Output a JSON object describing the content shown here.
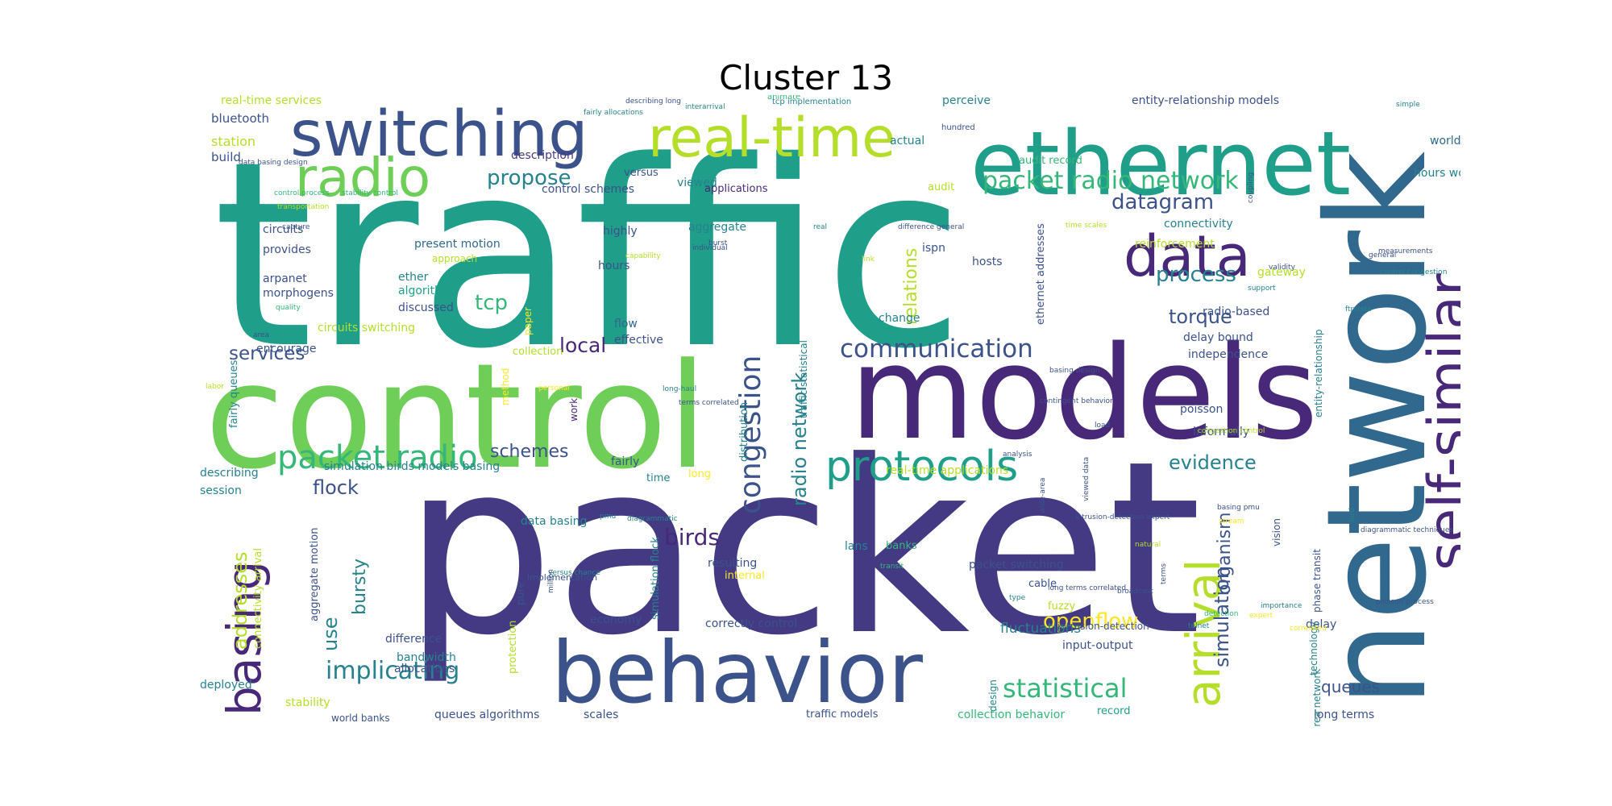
{
  "title": "Cluster 13",
  "palette": {
    "dark_purple": "#482878",
    "indigo": "#443983",
    "blue": "#3b528b",
    "steel": "#31688e",
    "teal": "#26828e",
    "teal_green": "#1f9e89",
    "green": "#35b779",
    "lime": "#6ece58",
    "yellow_green": "#b5de2b",
    "yellow": "#fde725"
  },
  "words": [
    {
      "text": "traffic",
      "color": "teal_green"
    },
    {
      "text": "packet",
      "color": "indigo"
    },
    {
      "text": "control",
      "color": "lime"
    },
    {
      "text": "models",
      "color": "dark_purple"
    },
    {
      "text": "network",
      "color": "steel"
    },
    {
      "text": "ethernet",
      "color": "teal_green"
    },
    {
      "text": "behavior",
      "color": "blue"
    },
    {
      "text": "switching",
      "color": "blue"
    },
    {
      "text": "real-time",
      "color": "yellow_green"
    },
    {
      "text": "data",
      "color": "dark_purple"
    },
    {
      "text": "radio",
      "color": "lime"
    },
    {
      "text": "self-similar",
      "color": "dark_purple"
    },
    {
      "text": "basing",
      "color": "dark_purple"
    },
    {
      "text": "arrival",
      "color": "yellow_green"
    },
    {
      "text": "protocols",
      "color": "teal_green"
    },
    {
      "text": "packet radio",
      "color": "green"
    },
    {
      "text": "congestion",
      "color": "blue"
    },
    {
      "text": "communication",
      "color": "blue"
    },
    {
      "text": "packet radio network",
      "color": "green"
    },
    {
      "text": "datagram",
      "color": "blue"
    },
    {
      "text": "process",
      "color": "teal"
    },
    {
      "text": "propose",
      "color": "teal"
    },
    {
      "text": "relations",
      "color": "yellow_green"
    },
    {
      "text": "implicating",
      "color": "teal"
    },
    {
      "text": "statistical",
      "color": "green"
    },
    {
      "text": "openflow",
      "color": "yellow"
    },
    {
      "text": "simulation",
      "color": "blue"
    },
    {
      "text": "addresses",
      "color": "yellow_green"
    },
    {
      "text": "radio network",
      "color": "teal"
    },
    {
      "text": "services",
      "color": "blue"
    },
    {
      "text": "local",
      "color": "dark_purple"
    },
    {
      "text": "tcp",
      "color": "green"
    },
    {
      "text": "torque",
      "color": "blue"
    },
    {
      "text": "evidence",
      "color": "teal"
    },
    {
      "text": "flock",
      "color": "blue"
    },
    {
      "text": "birds",
      "color": "dark_purple"
    },
    {
      "text": "schemes",
      "color": "blue"
    },
    {
      "text": "use",
      "color": "teal"
    },
    {
      "text": "bursty",
      "color": "teal"
    },
    {
      "text": "organism",
      "color": "blue"
    },
    {
      "text": "queues",
      "color": "blue"
    },
    {
      "text": "fluctuations",
      "color": "teal"
    },
    {
      "text": "bluetooth",
      "color": "blue"
    },
    {
      "text": "station",
      "color": "yellow_green"
    },
    {
      "text": "build",
      "color": "blue"
    },
    {
      "text": "real-time services",
      "color": "yellow_green"
    },
    {
      "text": "description",
      "color": "indigo"
    },
    {
      "text": "versus",
      "color": "blue"
    },
    {
      "text": "control schemes",
      "color": "blue"
    },
    {
      "text": "viewed",
      "color": "teal"
    },
    {
      "text": "applications",
      "color": "dark_purple"
    },
    {
      "text": "actual",
      "color": "teal"
    },
    {
      "text": "perceive",
      "color": "teal"
    },
    {
      "text": "audit",
      "color": "yellow_green"
    },
    {
      "text": "audit record",
      "color": "green"
    },
    {
      "text": "entity-relationship models",
      "color": "blue"
    },
    {
      "text": "world",
      "color": "steel"
    },
    {
      "text": "hours work",
      "color": "teal"
    },
    {
      "text": "circuits",
      "color": "blue"
    },
    {
      "text": "provides",
      "color": "blue"
    },
    {
      "text": "arpanet",
      "color": "blue"
    },
    {
      "text": "morphogens",
      "color": "blue"
    },
    {
      "text": "present motion",
      "color": "steel"
    },
    {
      "text": "approach",
      "color": "yellow_green"
    },
    {
      "text": "ether",
      "color": "teal"
    },
    {
      "text": "algorithms",
      "color": "teal_green"
    },
    {
      "text": "discussed",
      "color": "blue"
    },
    {
      "text": "circuits switching",
      "color": "yellow_green"
    },
    {
      "text": "encourage",
      "color": "blue"
    },
    {
      "text": "highly",
      "color": "blue"
    },
    {
      "text": "aggregate",
      "color": "teal"
    },
    {
      "text": "hours",
      "color": "blue"
    },
    {
      "text": "ispn",
      "color": "blue"
    },
    {
      "text": "hosts",
      "color": "blue"
    },
    {
      "text": "change",
      "color": "teal"
    },
    {
      "text": "flow",
      "color": "steel"
    },
    {
      "text": "effective",
      "color": "blue"
    },
    {
      "text": "collection",
      "color": "yellow_green"
    },
    {
      "text": "connectivity",
      "color": "teal"
    },
    {
      "text": "reinforcement",
      "color": "yellow_green"
    },
    {
      "text": "gateway",
      "color": "yellow_green"
    },
    {
      "text": "radio-based",
      "color": "blue"
    },
    {
      "text": "delay bound",
      "color": "blue"
    },
    {
      "text": "independence",
      "color": "blue"
    },
    {
      "text": "ethernet addresses",
      "color": "blue"
    },
    {
      "text": "poisson",
      "color": "blue"
    },
    {
      "text": "informally",
      "color": "blue"
    },
    {
      "text": "simulation birds models basing",
      "color": "teal"
    },
    {
      "text": "describing",
      "color": "teal"
    },
    {
      "text": "session",
      "color": "teal"
    },
    {
      "text": "real-time applications",
      "color": "yellow_green"
    },
    {
      "text": "fairly",
      "color": "blue"
    },
    {
      "text": "time",
      "color": "teal"
    },
    {
      "text": "long",
      "color": "yellow"
    },
    {
      "text": "data basing",
      "color": "teal"
    },
    {
      "text": "resulting",
      "color": "blue"
    },
    {
      "text": "internal",
      "color": "yellow"
    },
    {
      "text": "lans",
      "color": "teal"
    },
    {
      "text": "banks",
      "color": "green"
    },
    {
      "text": "packet switching",
      "color": "blue"
    },
    {
      "text": "cable",
      "color": "blue"
    },
    {
      "text": "fuzzy",
      "color": "yellow_green"
    },
    {
      "text": "economy",
      "color": "blue"
    },
    {
      "text": "correctly control",
      "color": "blue"
    },
    {
      "text": "difference",
      "color": "blue"
    },
    {
      "text": "bandwidth",
      "color": "teal"
    },
    {
      "text": "allocations",
      "color": "blue"
    },
    {
      "text": "intrusion-detection",
      "color": "blue"
    },
    {
      "text": "input-output",
      "color": "blue"
    },
    {
      "text": "deployed",
      "color": "teal"
    },
    {
      "text": "stability",
      "color": "yellow_green"
    },
    {
      "text": "world banks",
      "color": "blue"
    },
    {
      "text": "queues algorithms",
      "color": "blue"
    },
    {
      "text": "scales",
      "color": "blue"
    },
    {
      "text": "traffic models",
      "color": "blue"
    },
    {
      "text": "collection behavior",
      "color": "green"
    },
    {
      "text": "record",
      "color": "teal_green"
    },
    {
      "text": "long terms",
      "color": "blue"
    },
    {
      "text": "delay",
      "color": "blue"
    },
    {
      "text": "fairly queues",
      "color": "teal"
    },
    {
      "text": "connectivity arrival",
      "color": "yellow_green"
    },
    {
      "text": "aggregate motion",
      "color": "blue"
    },
    {
      "text": "pure",
      "color": "blue"
    },
    {
      "text": "protection",
      "color": "yellow_green"
    },
    {
      "text": "simulation flock",
      "color": "teal"
    },
    {
      "text": "distribution",
      "color": "teal"
    },
    {
      "text": "paper",
      "color": "yellow"
    },
    {
      "text": "method",
      "color": "yellow"
    },
    {
      "text": "work",
      "color": "dark_purple"
    },
    {
      "text": "entity-relationship",
      "color": "teal"
    },
    {
      "text": "vision",
      "color": "blue"
    },
    {
      "text": "technology",
      "color": "teal"
    },
    {
      "text": "phase transit",
      "color": "blue"
    },
    {
      "text": "design",
      "color": "teal"
    },
    {
      "text": "area network",
      "color": "teal"
    },
    {
      "text": "traffic statistical",
      "color": "teal"
    },
    {
      "text": "implementation",
      "color": "blue"
    },
    {
      "text": "describing long",
      "color": "blue"
    },
    {
      "text": "animate",
      "color": "green"
    },
    {
      "text": "tcp implementation",
      "color": "teal"
    },
    {
      "text": "fairly allocations",
      "color": "teal"
    },
    {
      "text": "interarrival",
      "color": "teal"
    },
    {
      "text": "hundred",
      "color": "blue"
    },
    {
      "text": "simple",
      "color": "teal"
    },
    {
      "text": "data basing design",
      "color": "blue"
    },
    {
      "text": "control process",
      "color": "green"
    },
    {
      "text": "stability control",
      "color": "green"
    },
    {
      "text": "transportation",
      "color": "yellow_green"
    },
    {
      "text": "capture",
      "color": "blue"
    },
    {
      "text": "capability",
      "color": "yellow_green"
    },
    {
      "text": "individual",
      "color": "blue"
    },
    {
      "text": "burst",
      "color": "blue"
    },
    {
      "text": "real",
      "color": "teal"
    },
    {
      "text": "link",
      "color": "yellow_green"
    },
    {
      "text": "difference general",
      "color": "blue"
    },
    {
      "text": "time scales",
      "color": "yellow_green"
    },
    {
      "text": "coupling",
      "color": "blue"
    },
    {
      "text": "validity",
      "color": "blue"
    },
    {
      "text": "measurements",
      "color": "blue"
    },
    {
      "text": "general",
      "color": "blue"
    },
    {
      "text": "control congestion",
      "color": "teal"
    },
    {
      "text": "support",
      "color": "teal"
    },
    {
      "text": "ftpdata",
      "color": "teal"
    },
    {
      "text": "quality",
      "color": "green"
    },
    {
      "text": "area",
      "color": "blue"
    },
    {
      "text": "labor",
      "color": "yellow_green"
    },
    {
      "text": "personal",
      "color": "yellow"
    },
    {
      "text": "long-haul",
      "color": "teal"
    },
    {
      "text": "terms correlated",
      "color": "blue"
    },
    {
      "text": "basing design",
      "color": "blue"
    },
    {
      "text": "contingent behavior",
      "color": "blue"
    },
    {
      "text": "congestion control",
      "color": "yellow_green"
    },
    {
      "text": "load",
      "color": "blue"
    },
    {
      "text": "analysis",
      "color": "blue"
    },
    {
      "text": "wide-area",
      "color": "blue"
    },
    {
      "text": "basing pmu",
      "color": "blue"
    },
    {
      "text": "stream",
      "color": "yellow"
    },
    {
      "text": "pmu",
      "color": "teal"
    },
    {
      "text": "diagrammatic",
      "color": "teal"
    },
    {
      "text": "versus chance",
      "color": "teal"
    },
    {
      "text": "million",
      "color": "blue"
    },
    {
      "text": "intrusion-detection expert",
      "color": "blue"
    },
    {
      "text": "viewed data",
      "color": "blue"
    },
    {
      "text": "natural",
      "color": "yellow_green"
    },
    {
      "text": "transit",
      "color": "green"
    },
    {
      "text": "broadcast",
      "color": "blue"
    },
    {
      "text": "type",
      "color": "teal"
    },
    {
      "text": "long terms correlated",
      "color": "blue"
    },
    {
      "text": "telnet",
      "color": "teal"
    },
    {
      "text": "terms",
      "color": "blue"
    },
    {
      "text": "detection",
      "color": "green"
    },
    {
      "text": "importance",
      "color": "teal"
    },
    {
      "text": "ford",
      "color": "teal"
    },
    {
      "text": "diagrammatic techniques",
      "color": "blue"
    },
    {
      "text": "poisson process",
      "color": "blue"
    },
    {
      "text": "expert",
      "color": "yellow"
    },
    {
      "text": "correlated",
      "color": "yellow"
    }
  ]
}
